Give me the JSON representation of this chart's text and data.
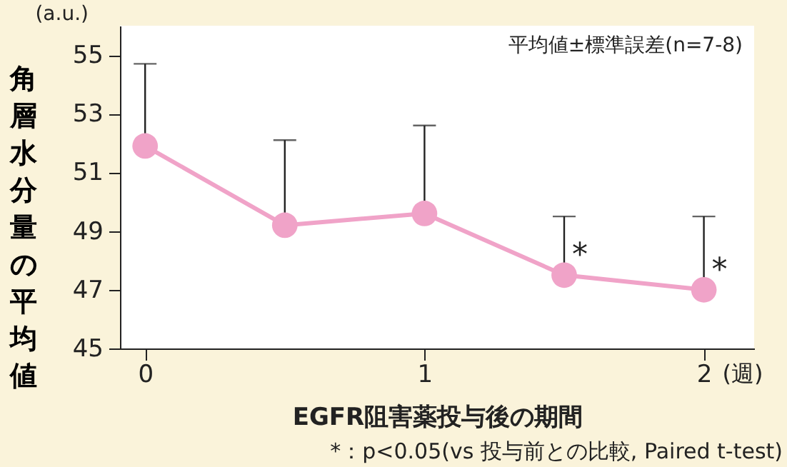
{
  "chart_data": {
    "type": "line",
    "ylabel": "角層水分量の平均値",
    "xlabel": "EGFR阻害薬投与後の期間",
    "x": [
      0,
      0.5,
      1,
      1.5,
      2
    ],
    "series": [
      {
        "color": "#f0a3c8",
        "values": [
          51.9,
          49.2,
          49.6,
          47.5,
          47.0
        ],
        "errors": [
          [
            51.9,
            54.7
          ],
          [
            49.2,
            52.1
          ],
          [
            49.6,
            52.6
          ],
          [
            47.5,
            49.5
          ],
          [
            47.0,
            49.5
          ]
        ]
      }
    ],
    "xlim": [
      -0.09,
      2.18
    ],
    "xticks": [
      0,
      1,
      2
    ],
    "ylim": [
      45,
      56
    ],
    "yticks": [
      45,
      47,
      49,
      51,
      53,
      55
    ],
    "marker": "circle",
    "line_style": "solid",
    "grid": false,
    "annotations": [
      "(a.u.)",
      "平均値±標準誤差(n=7-8)",
      {
        "text": "*",
        "x": 1.5,
        "y": 47.5
      },
      {
        "text": "*",
        "x": 2,
        "y": 47.0
      },
      "(週)",
      "*：p<0.05(vs 投与前との比較, Paired t-test)"
    ]
  }
}
